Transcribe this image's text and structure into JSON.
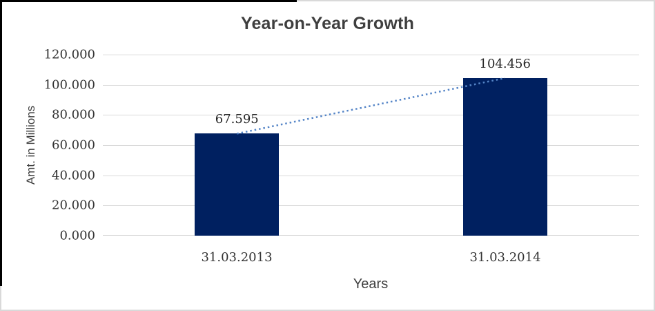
{
  "chart_data": {
    "type": "bar",
    "title": "Year-on-Year Growth",
    "xlabel": "Years",
    "ylabel": "Amt. in Millions",
    "categories": [
      "31.03.2013",
      "31.03.2014"
    ],
    "values": [
      67.595,
      104.456
    ],
    "data_labels": [
      "67.595",
      "104.456"
    ],
    "ylim": [
      0,
      120
    ],
    "ytick_step": 20,
    "ytick_labels": [
      "120.000",
      "100.000",
      "80.000",
      "60.000",
      "40.000",
      "20.000",
      "0.000"
    ],
    "grid": true,
    "legend": "none",
    "bar_color": "#002060",
    "gridline_color": "#d9d9d9",
    "trendline": {
      "type": "linear",
      "style": "dotted",
      "color": "#5585c7"
    }
  }
}
